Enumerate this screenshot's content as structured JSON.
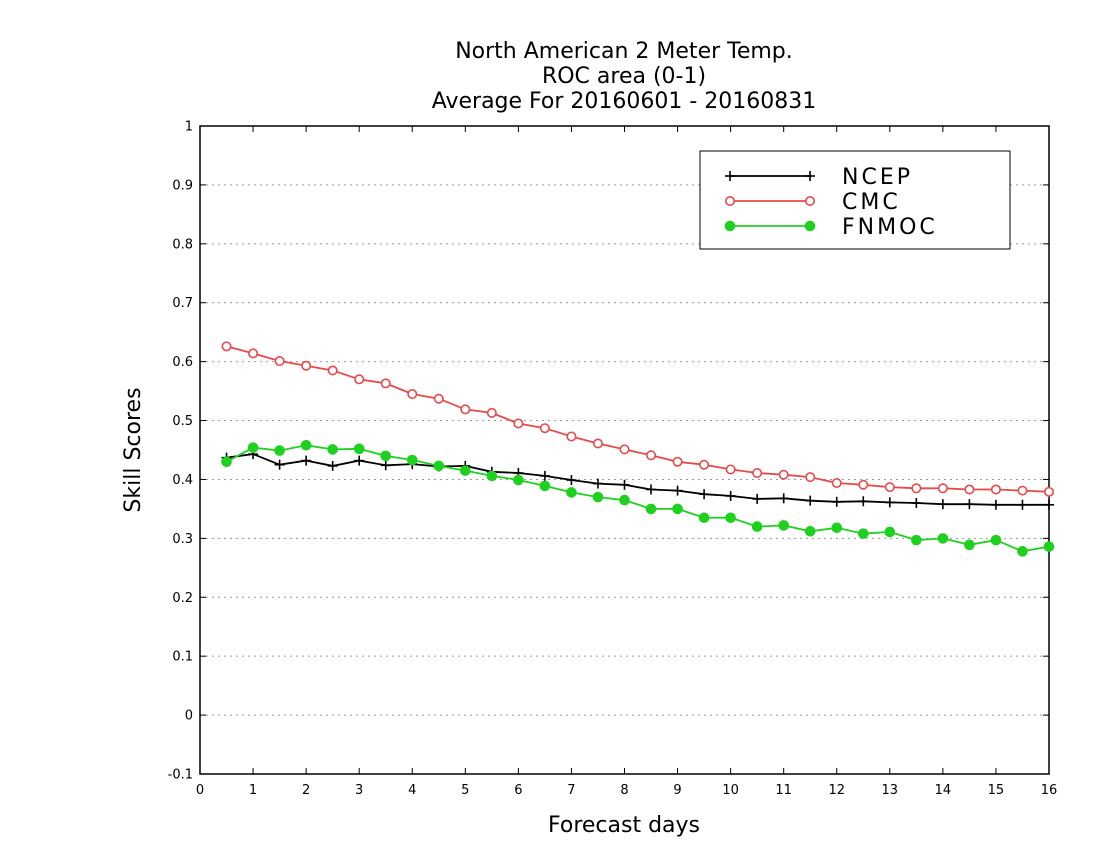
{
  "chart_data": {
    "type": "line",
    "title": [
      "North American 2 Meter Temp.",
      "ROC area (0-1)",
      "Average For 20160601 - 20160831"
    ],
    "xlabel": "Forecast days",
    "ylabel": "Skill Scores",
    "xlim": [
      0,
      16
    ],
    "ylim": [
      -0.1,
      1
    ],
    "xticks": [
      0,
      1,
      2,
      3,
      4,
      5,
      6,
      7,
      8,
      9,
      10,
      11,
      12,
      13,
      14,
      15,
      16
    ],
    "yticks": [
      -0.1,
      0,
      0.1,
      0.2,
      0.3,
      0.4,
      0.5,
      0.6,
      0.7,
      0.8,
      0.9,
      1
    ],
    "ytick_labels": [
      "-0.1",
      "0",
      "0.1",
      "0.2",
      "0.3",
      "0.4",
      "0.5",
      "0.6",
      "0.7",
      "0.8",
      "0.9",
      "1"
    ],
    "grid": "horizontal dotted",
    "legend_position": "top-right",
    "x": [
      0.5,
      1,
      1.5,
      2,
      2.5,
      3,
      3.5,
      4,
      4.5,
      5,
      5.5,
      6,
      6.5,
      7,
      7.5,
      8,
      8.5,
      9,
      9.5,
      10,
      10.5,
      11,
      11.5,
      12,
      12.5,
      13,
      13.5,
      14,
      14.5,
      15,
      15.5,
      16
    ],
    "series": [
      {
        "name": "NCEP",
        "color": "#000000",
        "marker": "plus",
        "values": [
          0.437,
          0.443,
          0.425,
          0.432,
          0.423,
          0.432,
          0.424,
          0.426,
          0.422,
          0.423,
          0.413,
          0.411,
          0.406,
          0.399,
          0.393,
          0.391,
          0.383,
          0.381,
          0.375,
          0.372,
          0.367,
          0.368,
          0.364,
          0.362,
          0.363,
          0.361,
          0.36,
          0.358,
          0.358,
          0.357,
          0.357,
          0.357
        ]
      },
      {
        "name": "CMC",
        "color": "#e84a4a",
        "marker": "open-circle",
        "values": [
          0.626,
          0.614,
          0.601,
          0.593,
          0.585,
          0.57,
          0.563,
          0.545,
          0.537,
          0.519,
          0.513,
          0.495,
          0.487,
          0.473,
          0.461,
          0.451,
          0.441,
          0.43,
          0.425,
          0.417,
          0.411,
          0.408,
          0.404,
          0.394,
          0.391,
          0.387,
          0.385,
          0.385,
          0.383,
          0.383,
          0.381,
          0.379
        ]
      },
      {
        "name": "FNMOC",
        "color": "#1fd11f",
        "marker": "filled-circle",
        "values": [
          0.43,
          0.454,
          0.449,
          0.458,
          0.451,
          0.452,
          0.44,
          0.433,
          0.423,
          0.415,
          0.406,
          0.399,
          0.389,
          0.378,
          0.37,
          0.365,
          0.35,
          0.35,
          0.335,
          0.335,
          0.32,
          0.322,
          0.312,
          0.318,
          0.308,
          0.311,
          0.297,
          0.3,
          0.289,
          0.297,
          0.278,
          0.286
        ]
      }
    ]
  }
}
